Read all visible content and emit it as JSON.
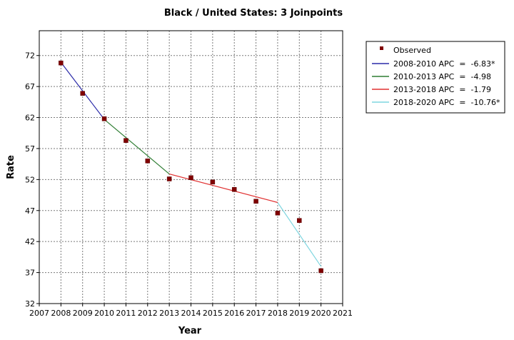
{
  "chart_data": {
    "type": "line",
    "title": "Black / United States: 3 Joinpoints",
    "xlabel": "Year",
    "ylabel": "Rate",
    "xlim": [
      2007,
      2021
    ],
    "ylim": [
      32,
      76
    ],
    "x_ticks": [
      2007,
      2008,
      2009,
      2010,
      2011,
      2012,
      2013,
      2014,
      2015,
      2016,
      2017,
      2018,
      2019,
      2020,
      2021
    ],
    "y_ticks": [
      32,
      37,
      42,
      47,
      52,
      57,
      62,
      67,
      72
    ],
    "grid": true,
    "legend_position": "right",
    "observed": {
      "name": "Observed",
      "color": "#800000",
      "x": [
        2008,
        2009,
        2010,
        2011,
        2012,
        2013,
        2014,
        2015,
        2016,
        2017,
        2018,
        2019,
        2020
      ],
      "y": [
        70.8,
        65.9,
        61.8,
        58.3,
        55.0,
        52.1,
        52.3,
        51.6,
        50.4,
        48.5,
        46.6,
        45.4,
        37.3
      ]
    },
    "series": [
      {
        "name": "2008-2010 APC  =  -6.83*",
        "color": "#2a2aa8",
        "x": [
          2008,
          2010
        ],
        "y": [
          70.9,
          61.7
        ]
      },
      {
        "name": "2010-2013 APC  =  -4.98",
        "color": "#2e7d32",
        "x": [
          2010,
          2013
        ],
        "y": [
          61.7,
          52.9
        ]
      },
      {
        "name": "2013-2018 APC  =  -1.79",
        "color": "#e03030",
        "x": [
          2013,
          2018
        ],
        "y": [
          52.9,
          48.3
        ]
      },
      {
        "name": "2018-2020 APC  =  -10.76*",
        "color": "#7fd6e0",
        "x": [
          2018,
          2020
        ],
        "y": [
          48.3,
          38.0
        ]
      }
    ]
  }
}
